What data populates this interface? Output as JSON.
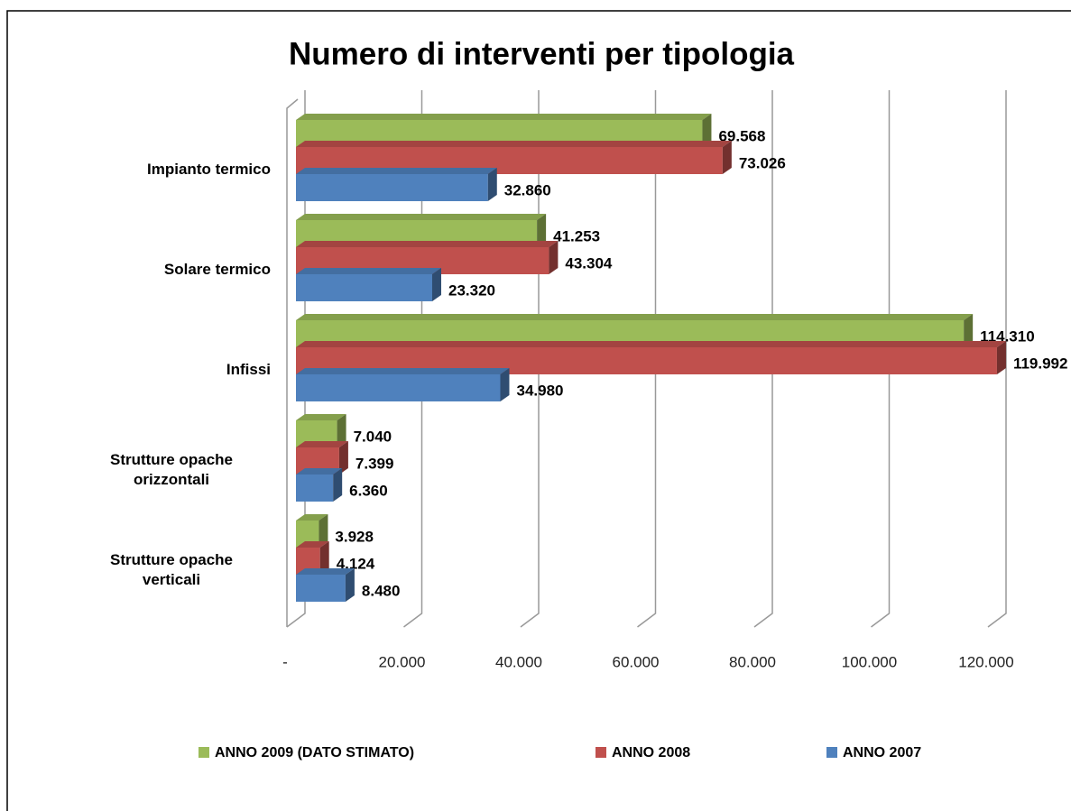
{
  "chart_data": {
    "type": "bar",
    "orientation": "horizontal",
    "title": "Numero di interventi per tipologia",
    "categories": [
      "Impianto termico",
      "Solare termico",
      "Infissi",
      "Strutture opache orizzontali",
      "Strutture opache verticali"
    ],
    "series": [
      {
        "name": "ANNO 2009 (DATO STIMATO)",
        "color": "#9bbb59",
        "values": [
          69568,
          41253,
          114310,
          7040,
          3928
        ],
        "value_labels": [
          "69.568",
          "41.253",
          "114.310",
          "7.040",
          "3.928"
        ]
      },
      {
        "name": "ANNO 2008",
        "color": "#c0504d",
        "values": [
          73026,
          43304,
          119992,
          7399,
          4124
        ],
        "value_labels": [
          "73.026",
          "43.304",
          "119.992",
          "7.399",
          "4.124"
        ]
      },
      {
        "name": "ANNO 2007",
        "color": "#4f81bd",
        "values": [
          32860,
          23320,
          34980,
          6360,
          8480
        ],
        "value_labels": [
          "32.860",
          "23.320",
          "34.980",
          "6.360",
          "8.480"
        ]
      }
    ],
    "xlim": [
      0,
      120000
    ],
    "xticks": [
      {
        "value": 0,
        "label": "-"
      },
      {
        "value": 20000,
        "label": "20.000"
      },
      {
        "value": 40000,
        "label": "40.000"
      },
      {
        "value": 60000,
        "label": "60.000"
      },
      {
        "value": 80000,
        "label": "80.000"
      },
      {
        "value": 100000,
        "label": "100.000"
      },
      {
        "value": 120000,
        "label": "120.000"
      }
    ],
    "grid": true,
    "legend": "bottom"
  }
}
